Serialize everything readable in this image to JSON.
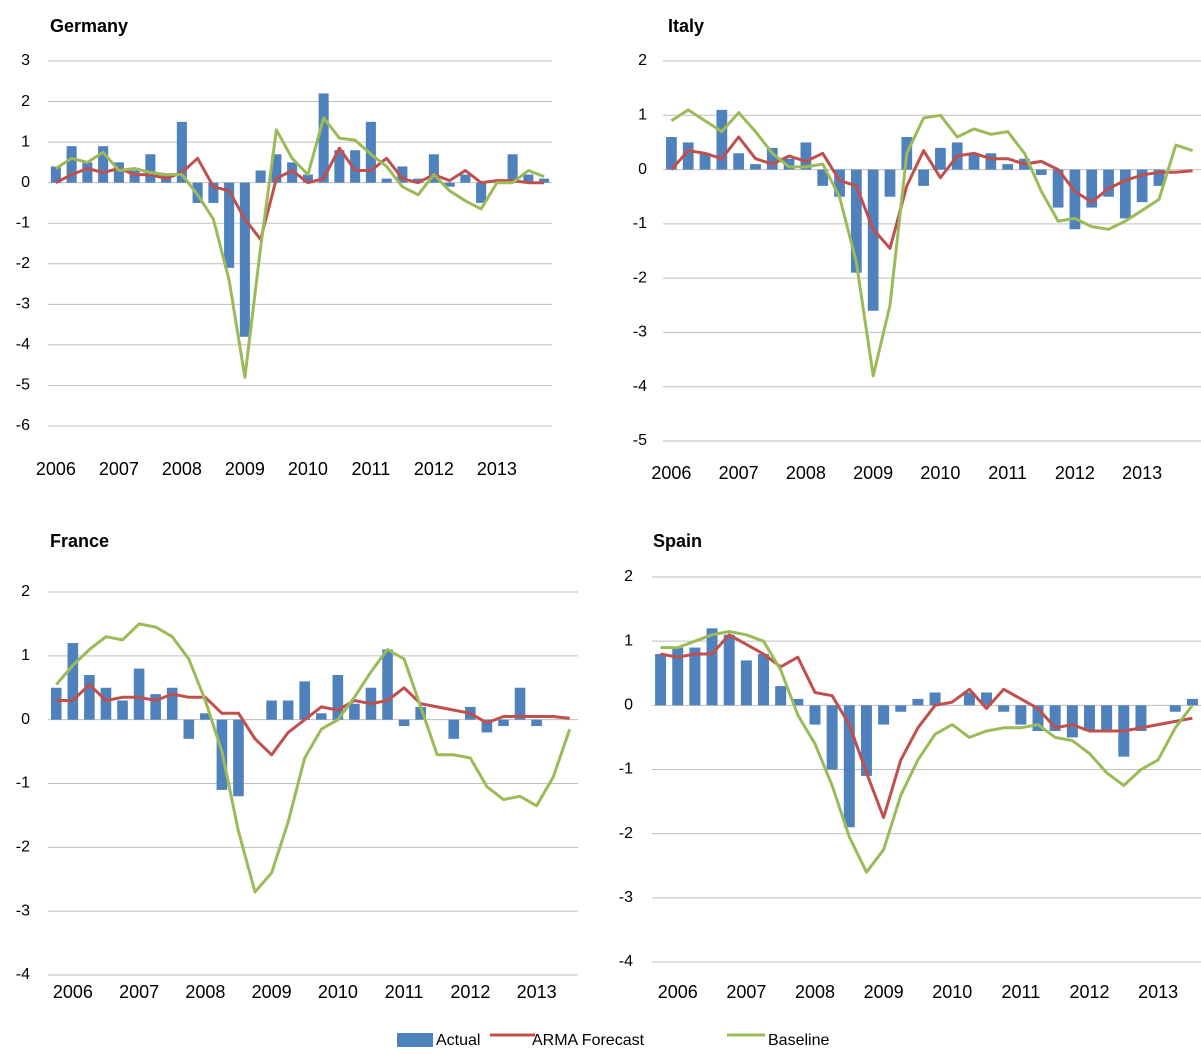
{
  "chart_data": [
    {
      "type": "combo",
      "title": "Germany",
      "categories": [
        "2006",
        null,
        null,
        null,
        "2007",
        null,
        null,
        null,
        "2008",
        null,
        null,
        null,
        "2009",
        null,
        null,
        null,
        "2010",
        null,
        null,
        null,
        "2011",
        null,
        null,
        null,
        "2012",
        null,
        null,
        null,
        "2013",
        null,
        null,
        null
      ],
      "ylim": [
        -6,
        3
      ],
      "yticks": [
        -6,
        -5,
        -4,
        -3,
        -2,
        -1,
        0,
        1,
        2,
        3
      ],
      "grid": true,
      "series": [
        {
          "name": "Actual",
          "kind": "bar",
          "color": "#4f81bd",
          "values": [
            0.4,
            0.9,
            0.5,
            0.9,
            0.5,
            0.3,
            0.7,
            0.2,
            1.5,
            -0.5,
            -0.5,
            -2.1,
            -3.8,
            0.3,
            0.7,
            0.5,
            0.2,
            2.2,
            0.8,
            0.8,
            1.5,
            0.1,
            0.4,
            0.1,
            0.7,
            -0.1,
            0.2,
            -0.5,
            0,
            0.7,
            0.2,
            0.1
          ]
        },
        {
          "name": "ARMA Forecast",
          "kind": "line",
          "color": "#c0504d",
          "values": [
            0,
            0.2,
            0.35,
            0.25,
            0.35,
            0.2,
            0.2,
            0.1,
            0.25,
            0.6,
            -0.1,
            -0.2,
            -0.9,
            -1.4,
            0.1,
            0.3,
            0,
            0.1,
            0.85,
            0.3,
            0.3,
            0.6,
            0.1,
            0,
            0.2,
            0.05,
            0.3,
            0,
            0.05,
            0.05,
            0,
            0
          ]
        },
        {
          "name": "Baseline",
          "kind": "line",
          "color": "#9bbb59",
          "values": [
            0.35,
            0.6,
            0.5,
            0.75,
            0.3,
            0.35,
            0.25,
            0.2,
            0.2,
            -0.3,
            -0.9,
            -2.4,
            -4.8,
            -1.6,
            1.3,
            0.6,
            0.2,
            1.6,
            1.1,
            1.05,
            0.7,
            0.4,
            -0.1,
            -0.3,
            0.2,
            -0.2,
            -0.45,
            -0.65,
            0,
            0,
            0.3,
            0.15
          ]
        }
      ]
    },
    {
      "type": "combo",
      "title": "Italy",
      "categories": [
        "2006",
        null,
        null,
        null,
        "2007",
        null,
        null,
        null,
        "2008",
        null,
        null,
        null,
        "2009",
        null,
        null,
        null,
        "2010",
        null,
        null,
        null,
        "2011",
        null,
        null,
        null,
        "2012",
        null,
        null,
        null,
        "2013",
        null,
        null,
        null
      ],
      "ylim": [
        -5,
        2
      ],
      "yticks": [
        -5,
        -4,
        -3,
        -2,
        -1,
        0,
        1,
        2
      ],
      "grid": true,
      "series": [
        {
          "name": "Actual",
          "kind": "bar",
          "color": "#4f81bd",
          "values": [
            0.6,
            0.5,
            0.3,
            1.1,
            0.3,
            0.1,
            0.4,
            0.2,
            0.5,
            -0.3,
            -0.5,
            -1.9,
            -2.6,
            -0.5,
            0.6,
            -0.3,
            0.4,
            0.5,
            0.3,
            0.3,
            0.1,
            0.2,
            -0.1,
            -0.7,
            -1.1,
            -0.7,
            -0.5,
            -0.9,
            -0.6,
            -0.3,
            0,
            0
          ]
        },
        {
          "name": "ARMA Forecast",
          "kind": "line",
          "color": "#c0504d",
          "values": [
            0,
            0.35,
            0.3,
            0.2,
            0.6,
            0.2,
            0.1,
            0.25,
            0.15,
            0.3,
            -0.2,
            -0.3,
            -1.1,
            -1.45,
            -0.3,
            0.35,
            -0.15,
            0.25,
            0.3,
            0.2,
            0.2,
            0.1,
            0.15,
            0,
            -0.4,
            -0.6,
            -0.35,
            -0.2,
            -0.1,
            -0.05,
            -0.05,
            -0.02
          ]
        },
        {
          "name": "Baseline",
          "kind": "line",
          "color": "#9bbb59",
          "values": [
            0.9,
            1.1,
            0.9,
            0.7,
            1.05,
            0.7,
            0.3,
            0.05,
            0.05,
            0.1,
            -0.5,
            -1.7,
            -3.8,
            -2.5,
            0.3,
            0.95,
            1,
            0.6,
            0.75,
            0.65,
            0.7,
            0.3,
            -0.4,
            -0.95,
            -0.9,
            -1.05,
            -1.1,
            -0.95,
            -0.75,
            -0.55,
            0.45,
            0.35
          ]
        }
      ]
    },
    {
      "type": "combo",
      "title": "France",
      "categories": [
        null,
        "2006",
        null,
        null,
        null,
        "2007",
        null,
        null,
        null,
        "2008",
        null,
        null,
        null,
        "2009",
        null,
        null,
        null,
        "2010",
        null,
        null,
        null,
        "2011",
        null,
        null,
        null,
        "2012",
        null,
        null,
        null,
        "2013",
        null,
        null
      ],
      "ylim": [
        -4,
        2
      ],
      "yticks": [
        -4,
        -3,
        -2,
        -1,
        0,
        1,
        2
      ],
      "grid": true,
      "series": [
        {
          "name": "Actual",
          "kind": "bar",
          "color": "#4f81bd",
          "values": [
            0.5,
            1.2,
            0.7,
            0.5,
            0.3,
            0.8,
            0.4,
            0.5,
            -0.3,
            0.1,
            -1.1,
            -1.2,
            0,
            0.3,
            0.3,
            0.6,
            0.1,
            0.7,
            0.25,
            0.5,
            1.1,
            -0.1,
            0.2,
            0,
            -0.3,
            0.2,
            -0.2,
            -0.1,
            0.5,
            -0.1,
            0,
            0
          ]
        },
        {
          "name": "ARMA Forecast",
          "kind": "line",
          "color": "#c0504d",
          "values": [
            0.3,
            0.3,
            0.55,
            0.3,
            0.35,
            0.35,
            0.3,
            0.4,
            0.35,
            0.35,
            0.1,
            0.1,
            -0.3,
            -0.55,
            -0.2,
            0,
            0.2,
            0.15,
            0.3,
            0.25,
            0.3,
            0.5,
            0.25,
            0.2,
            0.15,
            0.1,
            -0.05,
            0.05,
            0.05,
            0.05,
            0.05,
            0.02
          ]
        },
        {
          "name": "Baseline",
          "kind": "line",
          "color": "#9bbb59",
          "values": [
            0.55,
            0.85,
            1.1,
            1.3,
            1.25,
            1.5,
            1.45,
            1.3,
            0.95,
            0.3,
            -0.5,
            -1.75,
            -2.7,
            -2.4,
            -1.6,
            -0.6,
            -0.15,
            0,
            0.35,
            0.75,
            1.1,
            0.95,
            0.2,
            -0.55,
            -0.55,
            -0.6,
            -1.05,
            -1.25,
            -1.2,
            -1.35,
            -0.9,
            -0.15
          ]
        }
      ]
    },
    {
      "type": "combo",
      "title": "Spain",
      "categories": [
        null,
        "2006",
        null,
        null,
        null,
        "2007",
        null,
        null,
        null,
        "2008",
        null,
        null,
        null,
        "2009",
        null,
        null,
        null,
        "2010",
        null,
        null,
        null,
        "2011",
        null,
        null,
        null,
        "2012",
        null,
        null,
        null,
        "2013",
        null,
        null
      ],
      "ylim": [
        -4,
        2
      ],
      "yticks": [
        -4,
        -3,
        -2,
        -1,
        0,
        1,
        2
      ],
      "grid": true,
      "series": [
        {
          "name": "Actual",
          "kind": "bar",
          "color": "#4f81bd",
          "values": [
            0.8,
            0.9,
            0.9,
            1.2,
            1.1,
            0.7,
            0.8,
            0.3,
            0.1,
            -0.3,
            -1.0,
            -1.9,
            -1.1,
            -0.3,
            -0.1,
            0.1,
            0.2,
            0,
            0.2,
            0.2,
            -0.1,
            -0.3,
            -0.4,
            -0.4,
            -0.5,
            -0.4,
            -0.4,
            -0.8,
            -0.4,
            0,
            -0.1,
            0.1
          ]
        },
        {
          "name": "ARMA Forecast",
          "kind": "line",
          "color": "#c0504d",
          "values": [
            0.8,
            0.75,
            0.8,
            0.8,
            1.1,
            0.95,
            0.8,
            0.6,
            0.75,
            0.2,
            0.15,
            -0.3,
            -1.05,
            -1.75,
            -0.85,
            -0.35,
            0,
            0.05,
            0.25,
            -0.05,
            0.25,
            0.1,
            -0.05,
            -0.35,
            -0.3,
            -0.4,
            -0.4,
            -0.4,
            -0.35,
            -0.3,
            -0.25,
            -0.2
          ]
        },
        {
          "name": "Baseline",
          "kind": "line",
          "color": "#9bbb59",
          "values": [
            0.9,
            0.9,
            1,
            1.1,
            1.15,
            1.1,
            1,
            0.55,
            -0.15,
            -0.6,
            -1.25,
            -2.05,
            -2.6,
            -2.25,
            -1.4,
            -0.85,
            -0.45,
            -0.3,
            -0.5,
            -0.4,
            -0.35,
            -0.35,
            -0.3,
            -0.5,
            -0.55,
            -0.75,
            -1.05,
            -1.25,
            -1,
            -0.85,
            -0.35,
            0
          ]
        }
      ]
    }
  ]
}
